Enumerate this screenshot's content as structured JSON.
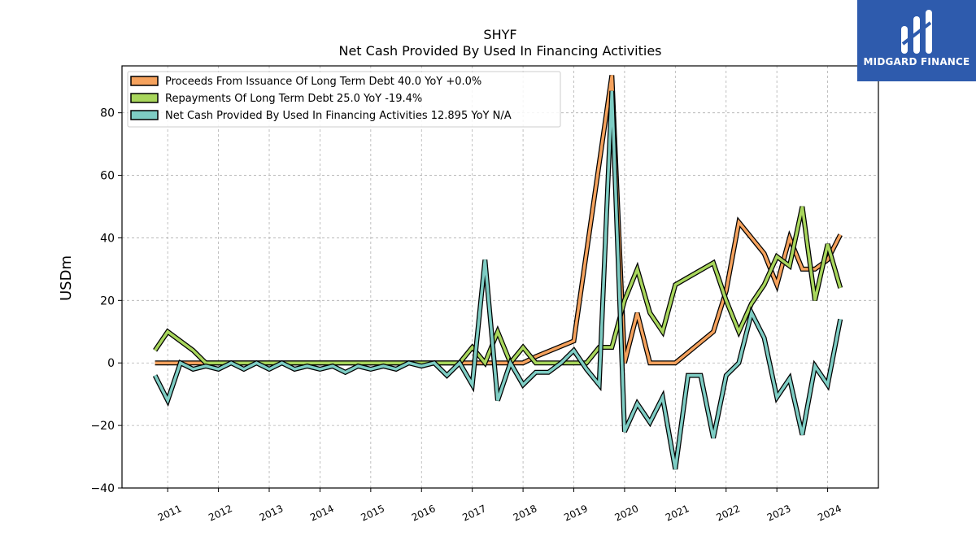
{
  "brand": {
    "name": "MIDGARD FINANCE",
    "background": "#2e5bad"
  },
  "chart_data": {
    "type": "line",
    "title": "SHYF",
    "subtitle": "Net Cash Provided By Used In Financing Activities",
    "ylabel": "USDm",
    "xlabel": "",
    "ylim": [
      -40,
      95
    ],
    "yticks": [
      -40,
      -20,
      0,
      20,
      40,
      60,
      80
    ],
    "xlim": [
      2010.1,
      2025.0
    ],
    "xticks": [
      "2011",
      "2012",
      "2013",
      "2014",
      "2015",
      "2016",
      "2017",
      "2018",
      "2019",
      "2020",
      "2021",
      "2022",
      "2023",
      "2024"
    ],
    "grid": true,
    "legend_position": "top-left",
    "series": [
      {
        "name": "Proceeds From Issuance Of Long Term Debt  40.0 YoY +0.0%",
        "color": "#f5a25d",
        "points": [
          [
            2010.75,
            0
          ],
          [
            2011.0,
            0
          ],
          [
            2011.25,
            0
          ],
          [
            2011.5,
            0
          ],
          [
            2011.75,
            0
          ],
          [
            2012.0,
            0
          ],
          [
            2013.0,
            0
          ],
          [
            2014.0,
            0
          ],
          [
            2015.0,
            0
          ],
          [
            2016.0,
            0
          ],
          [
            2016.5,
            0
          ],
          [
            2016.75,
            0
          ],
          [
            2017.0,
            0
          ],
          [
            2017.25,
            0
          ],
          [
            2017.5,
            0
          ],
          [
            2017.75,
            0
          ],
          [
            2018.0,
            0
          ],
          [
            2018.25,
            2
          ],
          [
            2019.0,
            7
          ],
          [
            2019.75,
            92
          ],
          [
            2020.0,
            0
          ],
          [
            2020.25,
            16
          ],
          [
            2020.5,
            0
          ],
          [
            2020.75,
            0
          ],
          [
            2021.0,
            0
          ],
          [
            2021.75,
            10
          ],
          [
            2022.0,
            23
          ],
          [
            2022.25,
            45
          ],
          [
            2022.75,
            35
          ],
          [
            2023.0,
            25
          ],
          [
            2023.25,
            40
          ],
          [
            2023.5,
            30
          ],
          [
            2023.75,
            30
          ],
          [
            2024.0,
            33
          ],
          [
            2024.25,
            41
          ]
        ]
      },
      {
        "name": "Repayments Of Long Term Debt  25.0 YoY -19.4%",
        "color": "#a8d65c",
        "points": [
          [
            2010.75,
            4
          ],
          [
            2011.0,
            10
          ],
          [
            2011.25,
            7
          ],
          [
            2011.5,
            4
          ],
          [
            2011.75,
            0
          ],
          [
            2012.0,
            0
          ],
          [
            2013.0,
            0
          ],
          [
            2014.0,
            0
          ],
          [
            2015.0,
            0
          ],
          [
            2016.0,
            0
          ],
          [
            2016.5,
            0
          ],
          [
            2016.75,
            0
          ],
          [
            2017.0,
            5
          ],
          [
            2017.25,
            0
          ],
          [
            2017.5,
            10
          ],
          [
            2017.75,
            0
          ],
          [
            2018.0,
            5
          ],
          [
            2018.25,
            0
          ],
          [
            2019.0,
            0
          ],
          [
            2019.25,
            0
          ],
          [
            2019.5,
            5
          ],
          [
            2019.75,
            5
          ],
          [
            2020.0,
            20
          ],
          [
            2020.25,
            30
          ],
          [
            2020.5,
            16
          ],
          [
            2020.75,
            10
          ],
          [
            2021.0,
            25
          ],
          [
            2021.75,
            32
          ],
          [
            2022.0,
            20
          ],
          [
            2022.25,
            10
          ],
          [
            2022.5,
            19
          ],
          [
            2022.75,
            25
          ],
          [
            2023.0,
            34
          ],
          [
            2023.25,
            31
          ],
          [
            2023.5,
            50
          ],
          [
            2023.75,
            20
          ],
          [
            2024.0,
            38
          ],
          [
            2024.25,
            24
          ]
        ]
      },
      {
        "name": "Net Cash Provided By Used In Financing Activities  12.895 YoY N/A",
        "color": "#7ecdc4",
        "points": [
          [
            2010.75,
            -4
          ],
          [
            2011.0,
            -12
          ],
          [
            2011.25,
            0
          ],
          [
            2011.5,
            -2
          ],
          [
            2011.75,
            -1
          ],
          [
            2012.0,
            -2
          ],
          [
            2012.25,
            0
          ],
          [
            2012.5,
            -2
          ],
          [
            2012.75,
            0
          ],
          [
            2013.0,
            -2
          ],
          [
            2013.25,
            0
          ],
          [
            2013.5,
            -2
          ],
          [
            2013.75,
            -1
          ],
          [
            2014.0,
            -2
          ],
          [
            2014.25,
            -1
          ],
          [
            2014.5,
            -3
          ],
          [
            2014.75,
            -1
          ],
          [
            2015.0,
            -2
          ],
          [
            2015.25,
            -1
          ],
          [
            2015.5,
            -2
          ],
          [
            2015.75,
            0
          ],
          [
            2016.0,
            -1
          ],
          [
            2016.25,
            0
          ],
          [
            2016.5,
            -4
          ],
          [
            2016.75,
            0
          ],
          [
            2017.0,
            -7
          ],
          [
            2017.25,
            33
          ],
          [
            2017.5,
            -12
          ],
          [
            2017.75,
            0
          ],
          [
            2018.0,
            -7
          ],
          [
            2018.25,
            -3
          ],
          [
            2018.5,
            -3
          ],
          [
            2018.75,
            0
          ],
          [
            2019.0,
            4
          ],
          [
            2019.25,
            -2
          ],
          [
            2019.5,
            -7
          ],
          [
            2019.75,
            87
          ],
          [
            2020.0,
            -22
          ],
          [
            2020.25,
            -13
          ],
          [
            2020.5,
            -19
          ],
          [
            2020.75,
            -11
          ],
          [
            2021.0,
            -34
          ],
          [
            2021.25,
            -4
          ],
          [
            2021.5,
            -4
          ],
          [
            2021.75,
            -24
          ],
          [
            2022.0,
            -4
          ],
          [
            2022.25,
            0
          ],
          [
            2022.5,
            16
          ],
          [
            2022.75,
            8
          ],
          [
            2023.0,
            -11
          ],
          [
            2023.25,
            -5
          ],
          [
            2023.5,
            -23
          ],
          [
            2023.75,
            -1
          ],
          [
            2024.0,
            -7
          ],
          [
            2024.25,
            14
          ]
        ]
      }
    ]
  }
}
